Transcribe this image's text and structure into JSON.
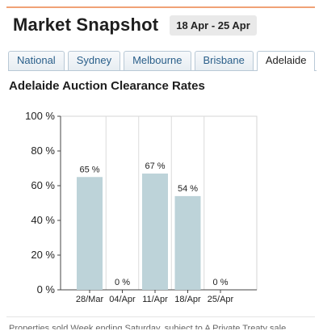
{
  "header": {
    "title": "Market Snapshot",
    "date_range": "18 Apr - 25 Apr"
  },
  "tabs": [
    {
      "label": "National",
      "active": false
    },
    {
      "label": "Sydney",
      "active": false
    },
    {
      "label": "Melbourne",
      "active": false
    },
    {
      "label": "Brisbane",
      "active": false
    },
    {
      "label": "Adelaide",
      "active": true
    }
  ],
  "section_title": "Adelaide Auction Clearance Rates",
  "chart_data": {
    "type": "bar",
    "title": "",
    "xlabel": "",
    "ylabel": "",
    "categories": [
      "28/Mar",
      "04/Apr",
      "11/Apr",
      "18/Apr",
      "25/Apr"
    ],
    "values": [
      65,
      0,
      67,
      54,
      0
    ],
    "data_labels": [
      "65 %",
      "0 %",
      "67 %",
      "54 %",
      "0 %"
    ],
    "ylim": [
      0,
      100
    ],
    "yticks": [
      0,
      20,
      40,
      60,
      80,
      100
    ],
    "ytick_labels": [
      "0 %",
      "20 %",
      "40 %",
      "60 %",
      "80 %",
      "100 %"
    ],
    "grid": "vertical",
    "bar_color": "#bdd3d9"
  },
  "footer": {
    "text": "Properties sold Week ending Saturday, subject to A Private Treaty sale"
  }
}
